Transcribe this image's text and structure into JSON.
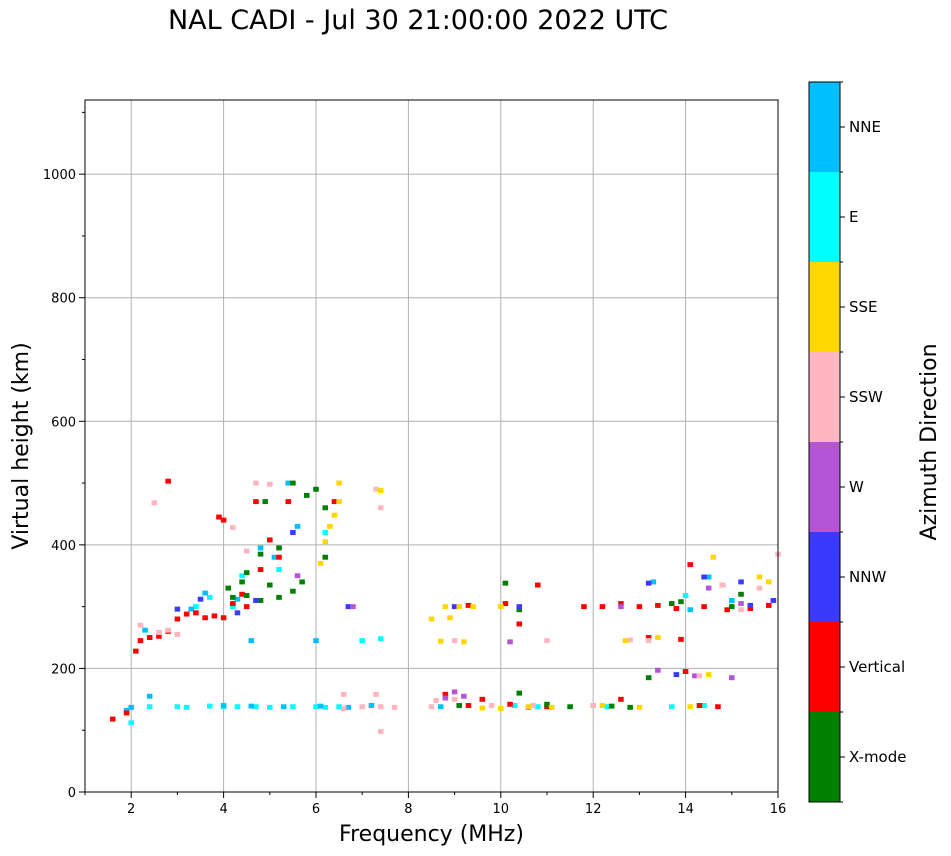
{
  "chart_data": {
    "type": "scatter",
    "title": "NAL CADI - Jul 30 21:00:00 2022 UTC",
    "xlabel": "Frequency (MHz)",
    "ylabel": "Virtual height (km)",
    "xlim": [
      1,
      16
    ],
    "ylim": [
      0,
      1120
    ],
    "xticks": [
      2,
      4,
      6,
      8,
      10,
      12,
      14,
      16
    ],
    "yticks": [
      0,
      200,
      400,
      600,
      800,
      1000
    ],
    "grid": true,
    "colorbar": {
      "label": "Azimuth Direction",
      "categories": [
        "X-mode",
        "Vertical",
        "NNW",
        "W",
        "SSW",
        "SSE",
        "E",
        "NNE"
      ],
      "colors": [
        "#008000",
        "#ff0000",
        "#3a3aff",
        "#b455d8",
        "#ffb6c1",
        "#ffd700",
        "#00ffff",
        "#00bfff"
      ]
    },
    "echo_size_mhz": [
      0.12,
      8
    ],
    "series": [
      {
        "name": "E",
        "points": [
          [
            2.4,
            138
          ],
          [
            3.0,
            138
          ],
          [
            3.2,
            137
          ],
          [
            3.7,
            139
          ],
          [
            4.0,
            138
          ],
          [
            4.3,
            138
          ],
          [
            4.7,
            138
          ],
          [
            5.0,
            137
          ],
          [
            5.5,
            138
          ],
          [
            6.0,
            138
          ],
          [
            6.2,
            137
          ],
          [
            6.5,
            138
          ],
          [
            10.3,
            140
          ],
          [
            10.8,
            138
          ],
          [
            12.3,
            138
          ],
          [
            13.7,
            138
          ],
          [
            14.4,
            140
          ],
          [
            2.0,
            112
          ],
          [
            3.4,
            300
          ],
          [
            3.7,
            315
          ],
          [
            6.2,
            420
          ],
          [
            7.0,
            245
          ],
          [
            7.4,
            248
          ],
          [
            14.0,
            318
          ],
          [
            4.2,
            300
          ],
          [
            4.4,
            350
          ],
          [
            5.2,
            360
          ]
        ]
      },
      {
        "name": "NNE",
        "points": [
          [
            1.9,
            132
          ],
          [
            2.0,
            137
          ],
          [
            2.4,
            155
          ],
          [
            4.0,
            140
          ],
          [
            4.6,
            139
          ],
          [
            5.3,
            138
          ],
          [
            6.1,
            139
          ],
          [
            6.7,
            137
          ],
          [
            2.3,
            262
          ],
          [
            2.6,
            258
          ],
          [
            3.3,
            296
          ],
          [
            3.6,
            322
          ],
          [
            4.3,
            312
          ],
          [
            4.8,
            395
          ],
          [
            5.1,
            380
          ],
          [
            5.4,
            500
          ],
          [
            6.0,
            245
          ],
          [
            8.7,
            138
          ],
          [
            14.1,
            295
          ],
          [
            15.0,
            310
          ],
          [
            13.3,
            340
          ],
          [
            14.5,
            348
          ],
          [
            4.6,
            245
          ],
          [
            5.6,
            430
          ],
          [
            7.2,
            140
          ]
        ]
      },
      {
        "name": "Vertical",
        "points": [
          [
            1.6,
            118
          ],
          [
            1.9,
            128
          ],
          [
            2.1,
            228
          ],
          [
            2.2,
            245
          ],
          [
            2.4,
            250
          ],
          [
            2.6,
            252
          ],
          [
            2.8,
            260
          ],
          [
            3.0,
            280
          ],
          [
            3.2,
            288
          ],
          [
            3.4,
            290
          ],
          [
            3.6,
            282
          ],
          [
            3.8,
            285
          ],
          [
            4.0,
            282
          ],
          [
            4.2,
            305
          ],
          [
            4.4,
            320
          ],
          [
            4.5,
            300
          ],
          [
            4.7,
            470
          ],
          [
            5.0,
            408
          ],
          [
            5.2,
            380
          ],
          [
            2.8,
            503
          ],
          [
            4.0,
            440
          ],
          [
            9.3,
            140
          ],
          [
            9.3,
            302
          ],
          [
            10.1,
            305
          ],
          [
            10.4,
            272
          ],
          [
            10.8,
            335
          ],
          [
            11.0,
            138
          ],
          [
            11.8,
            300
          ],
          [
            12.2,
            300
          ],
          [
            12.6,
            305
          ],
          [
            13.0,
            300
          ],
          [
            13.4,
            302
          ],
          [
            13.8,
            297
          ],
          [
            14.1,
            368
          ],
          [
            14.4,
            300
          ],
          [
            14.7,
            138
          ],
          [
            14.9,
            295
          ],
          [
            15.4,
            297
          ],
          [
            12.6,
            150
          ],
          [
            13.2,
            250
          ],
          [
            13.9,
            247
          ],
          [
            14.0,
            195
          ],
          [
            8.8,
            158
          ],
          [
            9.6,
            150
          ],
          [
            10.2,
            142
          ],
          [
            3.9,
            445
          ],
          [
            4.8,
            360
          ],
          [
            5.4,
            470
          ],
          [
            6.4,
            470
          ],
          [
            14.3,
            140
          ],
          [
            15.8,
            302
          ]
        ]
      },
      {
        "name": "X-mode",
        "points": [
          [
            4.2,
            315
          ],
          [
            4.5,
            318
          ],
          [
            4.8,
            310
          ],
          [
            5.2,
            315
          ],
          [
            5.5,
            325
          ],
          [
            5.0,
            335
          ],
          [
            5.5,
            500
          ],
          [
            6.0,
            490
          ],
          [
            6.2,
            380
          ],
          [
            5.7,
            340
          ],
          [
            4.4,
            340
          ],
          [
            10.1,
            338
          ],
          [
            10.4,
            160
          ],
          [
            10.4,
            295
          ],
          [
            11.0,
            142
          ],
          [
            11.5,
            138
          ],
          [
            12.0,
            140
          ],
          [
            12.4,
            139
          ],
          [
            12.8,
            137
          ],
          [
            13.2,
            185
          ],
          [
            13.9,
            308
          ],
          [
            15.0,
            300
          ],
          [
            15.2,
            320
          ],
          [
            4.9,
            470
          ],
          [
            5.8,
            480
          ],
          [
            4.8,
            385
          ],
          [
            5.2,
            395
          ],
          [
            4.1,
            330
          ],
          [
            9.1,
            140
          ],
          [
            13.7,
            305
          ],
          [
            6.2,
            460
          ],
          [
            4.5,
            355
          ]
        ]
      },
      {
        "name": "NNW",
        "points": [
          [
            3.0,
            296
          ],
          [
            3.5,
            312
          ],
          [
            4.3,
            290
          ],
          [
            6.7,
            300
          ],
          [
            10.4,
            300
          ],
          [
            13.2,
            338
          ],
          [
            13.8,
            190
          ],
          [
            14.4,
            348
          ],
          [
            14.8,
            335
          ],
          [
            15.2,
            340
          ],
          [
            15.4,
            302
          ],
          [
            15.9,
            310
          ],
          [
            9.0,
            300
          ],
          [
            4.7,
            310
          ],
          [
            5.5,
            420
          ]
        ]
      },
      {
        "name": "W",
        "points": [
          [
            6.8,
            300
          ],
          [
            8.8,
            152
          ],
          [
            9.0,
            162
          ],
          [
            10.2,
            243
          ],
          [
            10.6,
            137
          ],
          [
            12.6,
            300
          ],
          [
            13.4,
            197
          ],
          [
            14.2,
            188
          ],
          [
            14.5,
            330
          ],
          [
            15.0,
            185
          ],
          [
            15.2,
            305
          ],
          [
            9.2,
            155
          ],
          [
            5.6,
            350
          ]
        ]
      },
      {
        "name": "SSW",
        "points": [
          [
            2.2,
            270
          ],
          [
            2.6,
            258
          ],
          [
            2.8,
            262
          ],
          [
            3.0,
            255
          ],
          [
            2.5,
            468
          ],
          [
            4.2,
            428
          ],
          [
            4.5,
            390
          ],
          [
            4.7,
            500
          ],
          [
            5.0,
            498
          ],
          [
            6.6,
            135
          ],
          [
            7.0,
            138
          ],
          [
            7.4,
            138
          ],
          [
            7.7,
            137
          ],
          [
            6.6,
            158
          ],
          [
            7.3,
            158
          ],
          [
            7.4,
            98
          ],
          [
            7.4,
            460
          ],
          [
            8.6,
            148
          ],
          [
            9.0,
            150
          ],
          [
            9.8,
            140
          ],
          [
            10.7,
            140
          ],
          [
            11.0,
            245
          ],
          [
            12.0,
            140
          ],
          [
            12.8,
            246
          ],
          [
            13.2,
            245
          ],
          [
            14.3,
            188
          ],
          [
            14.8,
            335
          ],
          [
            15.6,
            330
          ],
          [
            15.2,
            295
          ],
          [
            16.0,
            385
          ],
          [
            9.0,
            245
          ],
          [
            7.3,
            490
          ],
          [
            8.5,
            138
          ]
        ]
      },
      {
        "name": "SSE",
        "points": [
          [
            6.1,
            370
          ],
          [
            6.2,
            405
          ],
          [
            6.3,
            430
          ],
          [
            6.4,
            448
          ],
          [
            6.5,
            500
          ],
          [
            6.5,
            470
          ],
          [
            7.4,
            488
          ],
          [
            8.5,
            280
          ],
          [
            8.8,
            300
          ],
          [
            9.1,
            300
          ],
          [
            9.4,
            300
          ],
          [
            10.0,
            300
          ],
          [
            8.7,
            244
          ],
          [
            9.2,
            243
          ],
          [
            10.0,
            135
          ],
          [
            10.6,
            138
          ],
          [
            11.1,
            137
          ],
          [
            12.2,
            140
          ],
          [
            12.7,
            245
          ],
          [
            13.0,
            137
          ],
          [
            13.4,
            250
          ],
          [
            14.1,
            138
          ],
          [
            14.5,
            190
          ],
          [
            14.6,
            380
          ],
          [
            15.6,
            348
          ],
          [
            15.8,
            340
          ],
          [
            9.6,
            136
          ],
          [
            8.9,
            282
          ]
        ]
      }
    ]
  }
}
